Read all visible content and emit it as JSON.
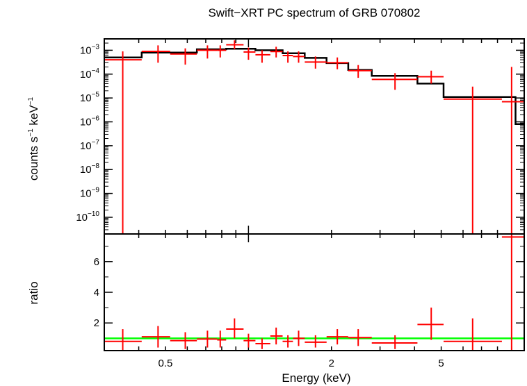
{
  "chart_data": {
    "type": "scatter",
    "title": "Swift−XRT PC spectrum of GRB 070802",
    "xlabel": "Energy (keV)",
    "xscale": "log",
    "xlim": [
      0.3,
      10
    ],
    "x_ticks": [
      {
        "value": 0.5,
        "label": "0.5"
      },
      {
        "value": 2,
        "label": "2"
      },
      {
        "value": 5,
        "label": "5"
      }
    ],
    "top_panel": {
      "ylabel": {
        "text": "counts s",
        "sup1": "−1",
        "text2": " keV",
        "sup2": "−1"
      },
      "yscale": "log",
      "ylim": [
        2e-11,
        0.003
      ],
      "y_ticks": [
        {
          "value": 0.001,
          "base": "10",
          "exp": "−3"
        },
        {
          "value": 0.0001,
          "base": "10",
          "exp": "−4"
        },
        {
          "value": 1e-05,
          "base": "10",
          "exp": "−5"
        },
        {
          "value": 1e-06,
          "base": "10",
          "exp": "−6"
        },
        {
          "value": 1e-07,
          "base": "10",
          "exp": "−7"
        },
        {
          "value": 1e-08,
          "base": "10",
          "exp": "−8"
        },
        {
          "value": 1e-09,
          "base": "10",
          "exp": "−9"
        },
        {
          "value": 1e-10,
          "base": "10",
          "exp": "−10"
        }
      ],
      "data": [
        {
          "x": 0.35,
          "xlo": 0.3,
          "xhi": 0.41,
          "y": 0.0004,
          "ylo": 2e-11,
          "yhi": 0.0009
        },
        {
          "x": 0.47,
          "xlo": 0.41,
          "xhi": 0.52,
          "y": 0.0009,
          "ylo": 0.0003,
          "yhi": 0.0016
        },
        {
          "x": 0.59,
          "xlo": 0.52,
          "xhi": 0.65,
          "y": 0.0007,
          "ylo": 0.00025,
          "yhi": 0.0012
        },
        {
          "x": 0.71,
          "xlo": 0.65,
          "xhi": 0.77,
          "y": 0.001,
          "ylo": 0.00045,
          "yhi": 0.0016
        },
        {
          "x": 0.79,
          "xlo": 0.77,
          "xhi": 0.83,
          "y": 0.001,
          "ylo": 0.0005,
          "yhi": 0.0016
        },
        {
          "x": 0.89,
          "xlo": 0.83,
          "xhi": 0.96,
          "y": 0.0017,
          "ylo": 0.0011,
          "yhi": 0.0026
        },
        {
          "x": 1.0,
          "xlo": 0.96,
          "xhi": 1.06,
          "y": 0.00085,
          "ylo": 0.0004,
          "yhi": 0.0013
        },
        {
          "x": 1.12,
          "xlo": 1.06,
          "xhi": 1.2,
          "y": 0.00065,
          "ylo": 0.0003,
          "yhi": 0.001
        },
        {
          "x": 1.26,
          "xlo": 1.2,
          "xhi": 1.33,
          "y": 0.00088,
          "ylo": 0.0005,
          "yhi": 0.0014
        },
        {
          "x": 1.39,
          "xlo": 1.33,
          "xhi": 1.45,
          "y": 0.0006,
          "ylo": 0.0003,
          "yhi": 0.0009
        },
        {
          "x": 1.52,
          "xlo": 1.45,
          "xhi": 1.6,
          "y": 0.00055,
          "ylo": 0.0003,
          "yhi": 0.0009
        },
        {
          "x": 1.75,
          "xlo": 1.6,
          "xhi": 1.92,
          "y": 0.00032,
          "ylo": 0.00017,
          "yhi": 0.00055
        },
        {
          "x": 2.1,
          "xlo": 1.92,
          "xhi": 2.3,
          "y": 0.0003,
          "ylo": 0.00016,
          "yhi": 0.0005
        },
        {
          "x": 2.5,
          "xlo": 2.3,
          "xhi": 2.8,
          "y": 0.00014,
          "ylo": 7e-05,
          "yhi": 0.00024
        },
        {
          "x": 3.4,
          "xlo": 2.8,
          "xhi": 4.1,
          "y": 6e-05,
          "ylo": 2.2e-05,
          "yhi": 0.00011
        },
        {
          "x": 4.6,
          "xlo": 4.1,
          "xhi": 5.1,
          "y": 7.8e-05,
          "ylo": 4e-05,
          "yhi": 0.00014
        },
        {
          "x": 6.5,
          "xlo": 5.1,
          "xhi": 8.3,
          "y": 9e-06,
          "ylo": 2e-11,
          "yhi": 3e-05
        },
        {
          "x": 9.0,
          "xlo": 8.3,
          "xhi": 10.0,
          "y": 7e-06,
          "ylo": 2e-11,
          "yhi": 0.0002
        }
      ],
      "model_step": [
        {
          "x0": 0.3,
          "x1": 0.41,
          "y": 0.0005
        },
        {
          "x0": 0.41,
          "x1": 0.65,
          "y": 0.0008
        },
        {
          "x0": 0.65,
          "x1": 0.83,
          "y": 0.0011
        },
        {
          "x0": 0.83,
          "x1": 1.06,
          "y": 0.00115
        },
        {
          "x0": 1.06,
          "x1": 1.33,
          "y": 0.001
        },
        {
          "x0": 1.33,
          "x1": 1.6,
          "y": 0.00075
        },
        {
          "x0": 1.6,
          "x1": 1.92,
          "y": 0.00048
        },
        {
          "x0": 1.92,
          "x1": 2.3,
          "y": 0.00029
        },
        {
          "x0": 2.3,
          "x1": 2.8,
          "y": 0.00015
        },
        {
          "x0": 2.8,
          "x1": 4.1,
          "y": 8.5e-05
        },
        {
          "x0": 4.1,
          "x1": 5.1,
          "y": 4e-05
        },
        {
          "x0": 5.1,
          "x1": 9.3,
          "y": 1.1e-05
        },
        {
          "x0": 9.3,
          "x1": 10.0,
          "y": 8e-07
        }
      ]
    },
    "bottom_panel": {
      "ylabel": "ratio",
      "ylim": [
        0.2,
        7.8
      ],
      "y_ticks": [
        {
          "value": 2,
          "label": "2"
        },
        {
          "value": 4,
          "label": "4"
        },
        {
          "value": 6,
          "label": "6"
        }
      ],
      "reference_line": {
        "y": 1.0,
        "color": "#00ff00"
      },
      "data": [
        {
          "x": 0.35,
          "xlo": 0.3,
          "xhi": 0.41,
          "y": 0.8,
          "ylo": 0.2,
          "yhi": 1.6
        },
        {
          "x": 0.47,
          "xlo": 0.41,
          "xhi": 0.52,
          "y": 1.1,
          "ylo": 0.4,
          "yhi": 1.8
        },
        {
          "x": 0.59,
          "xlo": 0.52,
          "xhi": 0.65,
          "y": 0.85,
          "ylo": 0.3,
          "yhi": 1.4
        },
        {
          "x": 0.71,
          "xlo": 0.65,
          "xhi": 0.77,
          "y": 0.95,
          "ylo": 0.4,
          "yhi": 1.5
        },
        {
          "x": 0.79,
          "xlo": 0.77,
          "xhi": 0.83,
          "y": 0.9,
          "ylo": 0.4,
          "yhi": 1.5
        },
        {
          "x": 0.89,
          "xlo": 0.83,
          "xhi": 0.96,
          "y": 1.6,
          "ylo": 1.0,
          "yhi": 2.3
        },
        {
          "x": 1.0,
          "xlo": 0.96,
          "xhi": 1.06,
          "y": 0.85,
          "ylo": 0.4,
          "yhi": 1.3
        },
        {
          "x": 1.12,
          "xlo": 1.06,
          "xhi": 1.2,
          "y": 0.65,
          "ylo": 0.3,
          "yhi": 1.0
        },
        {
          "x": 1.26,
          "xlo": 1.2,
          "xhi": 1.33,
          "y": 1.15,
          "ylo": 0.6,
          "yhi": 1.7
        },
        {
          "x": 1.39,
          "xlo": 1.33,
          "xhi": 1.45,
          "y": 0.8,
          "ylo": 0.4,
          "yhi": 1.2
        },
        {
          "x": 1.52,
          "xlo": 1.45,
          "xhi": 1.6,
          "y": 1.0,
          "ylo": 0.5,
          "yhi": 1.5
        },
        {
          "x": 1.75,
          "xlo": 1.6,
          "xhi": 1.92,
          "y": 0.75,
          "ylo": 0.4,
          "yhi": 1.2
        },
        {
          "x": 2.1,
          "xlo": 1.92,
          "xhi": 2.3,
          "y": 1.1,
          "ylo": 0.6,
          "yhi": 1.6
        },
        {
          "x": 2.5,
          "xlo": 2.3,
          "xhi": 2.8,
          "y": 1.05,
          "ylo": 0.5,
          "yhi": 1.6
        },
        {
          "x": 3.4,
          "xlo": 2.8,
          "xhi": 4.1,
          "y": 0.7,
          "ylo": 0.3,
          "yhi": 1.2
        },
        {
          "x": 4.6,
          "xlo": 4.1,
          "xhi": 5.1,
          "y": 1.9,
          "ylo": 0.9,
          "yhi": 3.0
        },
        {
          "x": 6.5,
          "xlo": 5.1,
          "xhi": 8.3,
          "y": 0.8,
          "ylo": 0.2,
          "yhi": 2.3
        },
        {
          "x": 9.0,
          "xlo": 8.3,
          "xhi": 10.0,
          "y": 7.6,
          "ylo": 0.2,
          "yhi": 7.8
        }
      ]
    },
    "colors": {
      "data": "#ff0000",
      "model": "#000000",
      "reference": "#00ff00"
    }
  }
}
